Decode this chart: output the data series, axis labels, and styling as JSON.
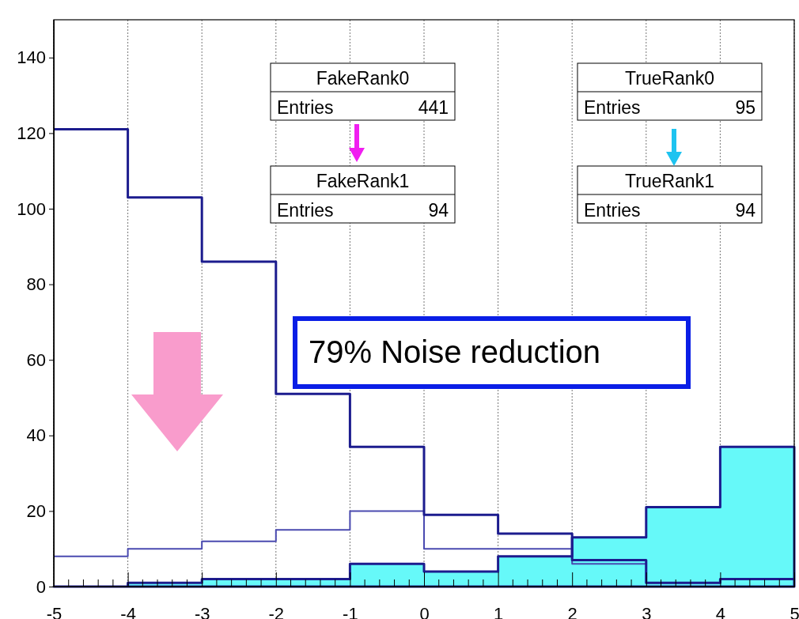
{
  "chart_data": {
    "type": "step",
    "x": [
      -5,
      -4,
      -3,
      -2,
      -1,
      0,
      1,
      2,
      3,
      4,
      5
    ],
    "series": [
      {
        "type": "area",
        "color": "#66f9f9",
        "values": [
          0,
          1,
          2,
          2,
          6,
          4,
          8,
          13,
          21,
          37,
          37
        ]
      },
      {
        "color": "#4a4ab0",
        "values": [
          8,
          10,
          12,
          15,
          20,
          10,
          10,
          6,
          1,
          2,
          2
        ]
      },
      {
        "color": "#1c1c8e",
        "values": [
          121,
          103,
          86,
          51,
          37,
          19,
          14,
          7,
          1,
          2,
          2
        ]
      }
    ],
    "xlim": [
      -5,
      5
    ],
    "xticks": [
      -5,
      -4,
      -3,
      -2,
      -1,
      0,
      1,
      2,
      3,
      4,
      5
    ],
    "ylim": [
      0,
      150
    ],
    "yticks": [
      0,
      20,
      40,
      60,
      80,
      100,
      120,
      140
    ],
    "grid": "x",
    "annotations": [
      "FakeRank0",
      "Entries",
      "441",
      "FakeRank1",
      "Entries",
      "94",
      "TrueRank0",
      "Entries",
      "95",
      "TrueRank1",
      "Entries",
      "94",
      "79% Noise reduction"
    ]
  }
}
